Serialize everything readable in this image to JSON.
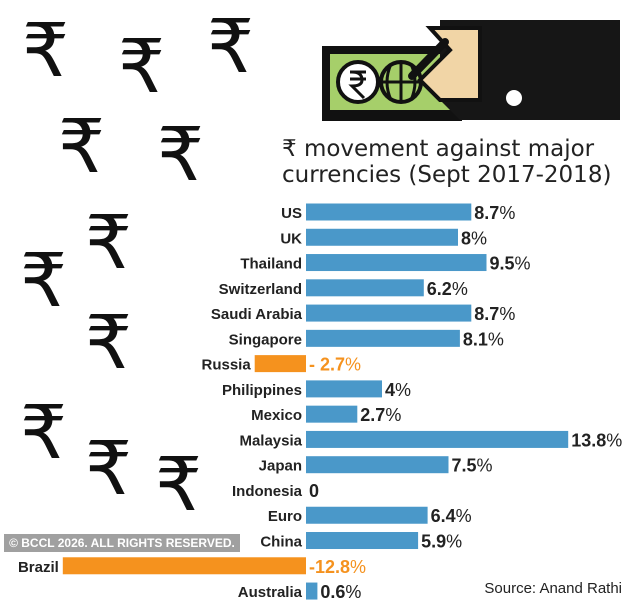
{
  "chart_data": {
    "type": "bar",
    "orientation": "horizontal",
    "title": "₹ movement against major currencies (Sept 2017-2018)",
    "title_line1": "₹ movement against major",
    "title_line2": "currencies (Sept 2017-2018)",
    "categories": [
      "US",
      "UK",
      "Thailand",
      "Switzerland",
      "Saudi Arabia",
      "Singapore",
      "Russia",
      "Philippines",
      "Mexico",
      "Malaysia",
      "Japan",
      "Indonesia",
      "Euro",
      "China",
      "Brazil",
      "Australia"
    ],
    "values": [
      8.7,
      8,
      9.5,
      6.2,
      8.7,
      8.1,
      -2.7,
      4,
      2.7,
      13.8,
      7.5,
      0,
      6.4,
      5.9,
      -12.8,
      0.6
    ],
    "labels": [
      "8.7",
      "8",
      "9.5",
      "6.2",
      "8.7",
      "8.1",
      "- 2.7",
      "4",
      "2.7",
      "13.8",
      "7.5",
      "0",
      "6.4",
      "5.9",
      "-12.8",
      "0.6"
    ],
    "unit": "%",
    "colors": {
      "positive": "#4a98c9",
      "negative": "#f5921e"
    },
    "source": "Source: Anand Rathi"
  },
  "watermark": "© BCCL 2026. ALL RIGHTS RESERVED."
}
